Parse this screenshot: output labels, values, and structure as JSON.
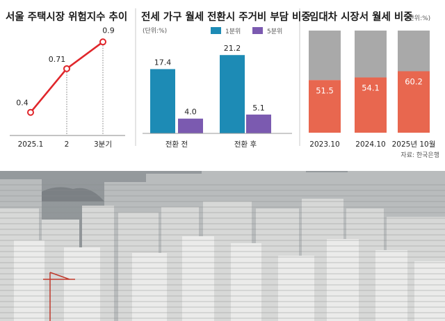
{
  "source_note": "자료: 한국은행",
  "chart_data": [
    {
      "type": "line",
      "title": "서울 주택시장 위험지수 추이",
      "categories": [
        "2025.1",
        "2",
        "3분기"
      ],
      "values": [
        0.4,
        0.71,
        0.9
      ],
      "value_labels": [
        "0.4",
        "0.71",
        "0.9"
      ],
      "ylim": [
        0.3,
        1.0
      ],
      "line_color": "#e0262b"
    },
    {
      "type": "bar",
      "title": "전세 가구 월세 전환시 주거비 부담 비중",
      "unit": "(단위:%)",
      "categories": [
        "전환 전",
        "전환 후"
      ],
      "series": [
        {
          "name": "1분위",
          "values": [
            17.4,
            21.2
          ],
          "value_labels": [
            "17.4",
            "21.2"
          ],
          "color": "#1d8bb5"
        },
        {
          "name": "5분위",
          "values": [
            4.0,
            5.1
          ],
          "value_labels": [
            "4.0",
            "5.1"
          ],
          "color": "#7b5ab0"
        }
      ],
      "ylim": [
        0,
        23.5
      ]
    },
    {
      "type": "bar",
      "stacked": true,
      "title": "임대차 시장서 월세 비중",
      "unit": "(단위:%)",
      "categories": [
        "2023.10",
        "2024.10",
        "2025년 10월"
      ],
      "values": [
        51.5,
        54.1,
        60.2
      ],
      "value_labels": [
        "51.5",
        "54.1",
        "60.2"
      ],
      "ylim": [
        0,
        100
      ],
      "color": "#e8674f",
      "rest_color": "#a9a9a9"
    }
  ]
}
